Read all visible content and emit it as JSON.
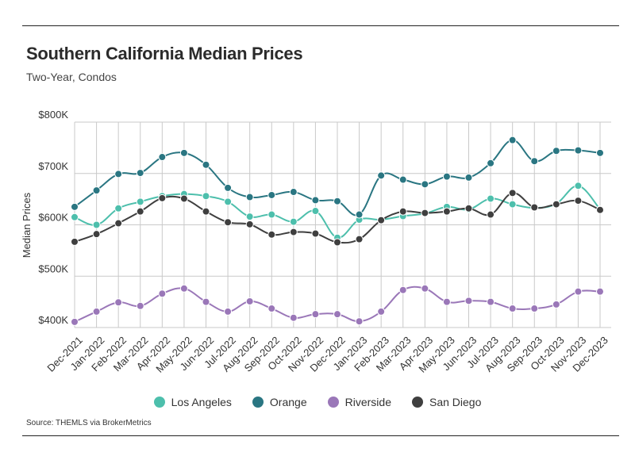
{
  "header": {
    "title": "Southern California Median Prices",
    "subtitle": "Two-Year, Condos"
  },
  "footer": {
    "source": "Source:  THEMLS via BrokerMetrics"
  },
  "chart_data": {
    "type": "line",
    "title": "Southern California Median Prices",
    "subtitle": "Two-Year, Condos",
    "xlabel": "",
    "ylabel": "Median Prices",
    "ylim": [
      400,
      800
    ],
    "yticks": [
      400,
      500,
      600,
      700,
      800
    ],
    "ytick_labels": [
      "$400K",
      "$500K",
      "$600K",
      "$700K",
      "$800K"
    ],
    "grid": true,
    "legend_position": "bottom-center",
    "categories": [
      "Dec-2021",
      "Jan-2022",
      "Feb-2022",
      "Mar-2022",
      "Apr-2022",
      "May-2022",
      "Jun-2022",
      "Jul-2022",
      "Aug-2022",
      "Sep-2022",
      "Oct-2022",
      "Nov-2022",
      "Dec-2022",
      "Jan-2023",
      "Feb-2023",
      "Mar-2023",
      "Apr-2023",
      "May-2023",
      "Jun-2023",
      "Jul-2023",
      "Aug-2023",
      "Sep-2023",
      "Oct-2023",
      "Nov-2023",
      "Dec-2023"
    ],
    "series": [
      {
        "name": "Los Angeles",
        "color": "#4dbfac",
        "values": [
          615,
          600,
          632,
          645,
          656,
          660,
          656,
          645,
          616,
          620,
          606,
          627,
          575,
          610,
          610,
          617,
          622,
          635,
          630,
          651,
          640,
          633,
          641,
          676,
          630
        ]
      },
      {
        "name": "Orange",
        "color": "#2a7682",
        "values": [
          635,
          667,
          699,
          701,
          732,
          740,
          717,
          672,
          654,
          658,
          664,
          648,
          646,
          620,
          696,
          688,
          679,
          694,
          692,
          720,
          765,
          724,
          744,
          745,
          740
        ]
      },
      {
        "name": "Riverside",
        "color": "#9a77b8",
        "values": [
          411,
          431,
          449,
          442,
          466,
          476,
          450,
          431,
          451,
          437,
          419,
          426,
          426,
          412,
          431,
          473,
          476,
          450,
          452,
          450,
          437,
          437,
          445,
          470,
          470
        ]
      },
      {
        "name": "San Diego",
        "color": "#3f3f3f",
        "values": [
          567,
          582,
          603,
          626,
          652,
          651,
          626,
          605,
          601,
          581,
          586,
          583,
          566,
          572,
          609,
          626,
          623,
          626,
          632,
          620,
          662,
          634,
          640,
          647,
          629
        ]
      }
    ]
  }
}
